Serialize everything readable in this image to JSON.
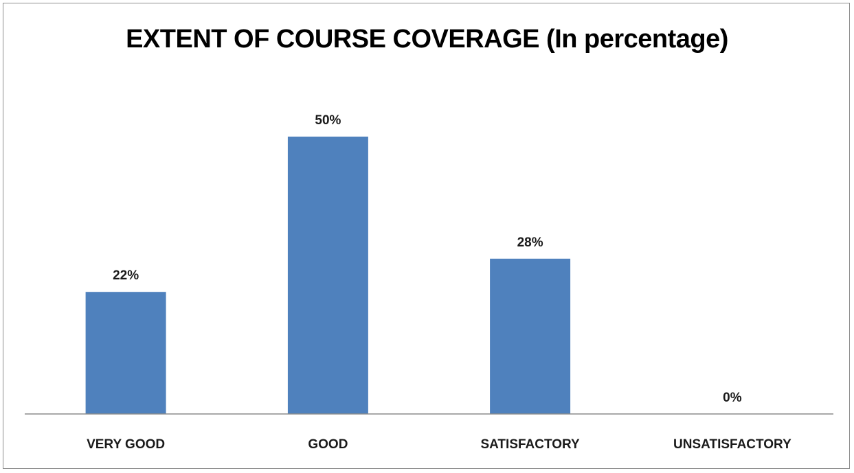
{
  "chart_data": {
    "type": "bar",
    "title": "EXTENT OF COURSE COVERAGE (In percentage)",
    "categories": [
      "VERY GOOD",
      "GOOD",
      "SATISFACTORY",
      "UNSATISFACTORY"
    ],
    "values": [
      22,
      50,
      28,
      0
    ],
    "data_labels": [
      "22%",
      "50%",
      "28%",
      "0%"
    ],
    "xlabel": "",
    "ylabel": "",
    "ylim": [
      0,
      50
    ],
    "grid": false,
    "legend": "none",
    "colors": {
      "bar": "#4f81bd",
      "axis": "#8c8c8c",
      "text": "#1a1a1a"
    }
  }
}
